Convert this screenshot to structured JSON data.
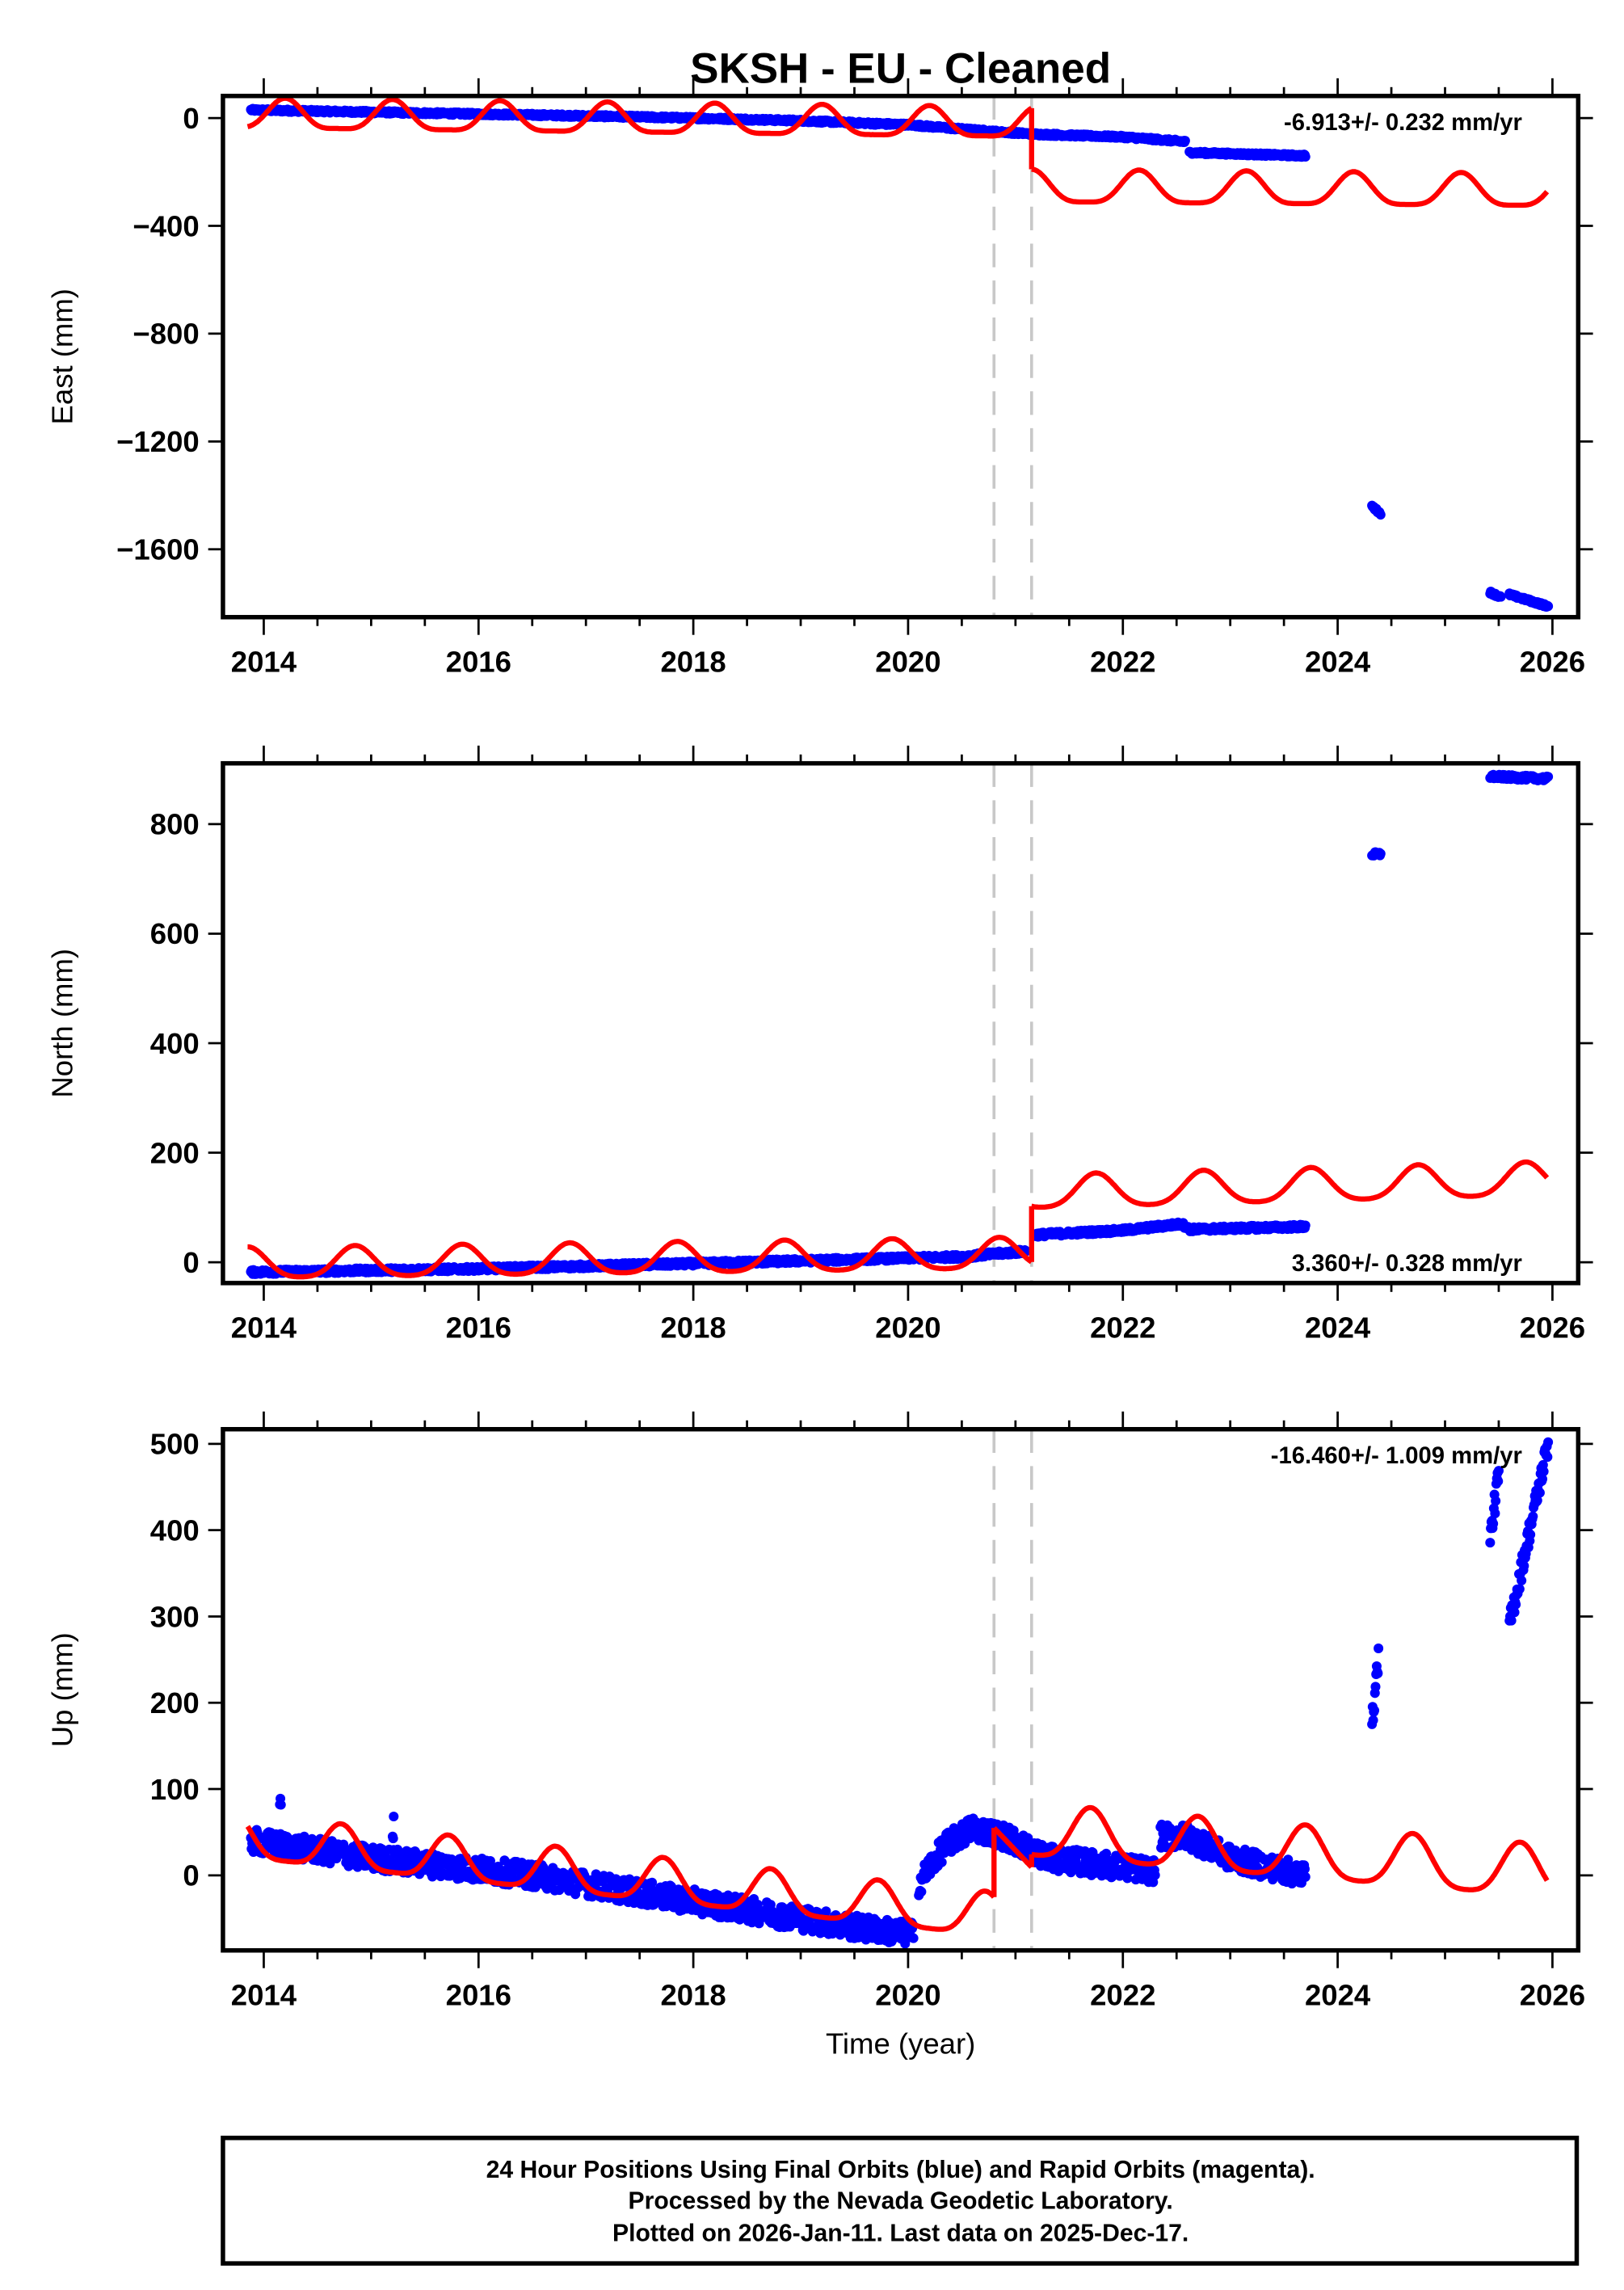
{
  "chart_data": {
    "type": "scatter",
    "title": "SKSH  - EU - Cleaned",
    "xlabel": "Time (year)",
    "xlim": [
      2013.62,
      2026.24
    ],
    "xticks": [
      2014,
      2016,
      2018,
      2020,
      2022,
      2024,
      2026
    ],
    "equipment_change_lines": [
      2020.8,
      2021.15
    ],
    "colors": {
      "observed": "#0000ff",
      "model": "#ff0000",
      "dashed": "#c8c8c8"
    },
    "panels": [
      {
        "ylabel": "East (mm)",
        "ylim": [
          -1852,
          82
        ],
        "yticks": [
          0,
          -400,
          -800,
          -1200,
          -1600
        ],
        "rate_label": "-6.913+/- 0.232 mm/yr",
        "rate_position": "top-right",
        "noise": 5,
        "observed_segments": [
          [
            [
              2013.88,
              30
            ],
            [
              2015,
              22
            ],
            [
              2016,
              15
            ],
            [
              2017,
              8
            ],
            [
              2018,
              0
            ],
            [
              2019,
              -10
            ],
            [
              2020,
              -25
            ],
            [
              2020.8,
              -50
            ],
            [
              2021.2,
              -60
            ],
            [
              2022,
              -70
            ],
            [
              2022.5,
              -85
            ],
            [
              2022.58,
              -88
            ]
          ],
          [
            [
              2022.62,
              -128
            ],
            [
              2023.7,
              -140
            ]
          ],
          [
            [
              2024.32,
              -1440
            ],
            [
              2024.4,
              -1468
            ]
          ],
          [
            [
              2025.42,
              -1760
            ],
            [
              2025.52,
              -1778
            ]
          ],
          [
            [
              2025.6,
              -1768
            ],
            [
              2025.96,
              -1812
            ]
          ]
        ],
        "model_segments": [
          {
            "t": [
              2013.85,
              2021.15
            ],
            "start": 5,
            "rate": -4.5,
            "annual_amp": 55,
            "semiannual_amp": 15,
            "peak_phase": 0.2
          },
          {
            "t": [
              2021.15,
              2025.95
            ],
            "start": -265,
            "rate": -3,
            "annual_amp": 60,
            "semiannual_amp": 15,
            "peak_phase": 0.15
          }
        ]
      },
      {
        "ylabel": "North (mm)",
        "ylim": [
          -38,
          911
        ],
        "yticks": [
          0,
          200,
          400,
          600,
          800
        ],
        "rate_label": "3.360+/- 0.328 mm/yr",
        "rate_position": "bottom-right",
        "noise": 4,
        "observed_segments": [
          [
            [
              2013.88,
              -18
            ],
            [
              2016,
              -12
            ],
            [
              2018.5,
              0
            ],
            [
              2020.5,
              10
            ],
            [
              2021.1,
              20
            ]
          ],
          [
            [
              2021.18,
              50
            ],
            [
              2022,
              58
            ],
            [
              2022.55,
              70
            ],
            [
              2022.62,
              60
            ],
            [
              2023.7,
              65
            ]
          ],
          [
            [
              2024.32,
              745
            ],
            [
              2024.4,
              745
            ]
          ],
          [
            [
              2025.42,
              887
            ],
            [
              2025.96,
              883
            ]
          ]
        ],
        "model_segments": [
          {
            "t": [
              2013.85,
              2021.15
            ],
            "start": -5,
            "rate": 2.5,
            "annual_amp": 28,
            "semiannual_amp": 5,
            "peak_phase": 0.85
          },
          {
            "t": [
              2021.15,
              2025.95
            ],
            "start": 125,
            "rate": 5,
            "annual_amp": 30,
            "semiannual_amp": 5,
            "peak_phase": 0.75
          }
        ]
      },
      {
        "ylabel": "Up (mm)",
        "ylim": [
          -87,
          517
        ],
        "yticks": [
          0,
          100,
          200,
          300,
          400,
          500
        ],
        "rate_label": "-16.460+/- 1.009 mm/yr",
        "rate_position": "top-right",
        "noise": 14,
        "observed_segments": [
          [
            [
              2013.88,
              40
            ],
            [
              2015,
              20
            ],
            [
              2016.5,
              0
            ],
            [
              2018,
              -30
            ],
            [
              2019.5,
              -60
            ],
            [
              2020.05,
              -68
            ]
          ],
          [
            [
              2020.1,
              -10
            ],
            [
              2020.2,
              10
            ],
            [
              2020.35,
              35
            ],
            [
              2020.6,
              55
            ],
            [
              2020.9,
              45
            ],
            [
              2021.3,
              20
            ],
            [
              2022.3,
              5
            ]
          ],
          [
            [
              2022.35,
              45
            ],
            [
              2022.6,
              45
            ],
            [
              2023,
              20
            ],
            [
              2023.7,
              0
            ]
          ],
          [
            [
              2014.15,
              95
            ],
            [
              2014.16,
              95
            ]
          ],
          [
            [
              2015.2,
              55
            ],
            [
              2015.21,
              55
            ]
          ],
          [
            [
              2024.32,
              175
            ],
            [
              2024.38,
              255
            ]
          ],
          [
            [
              2025.42,
              390
            ],
            [
              2025.5,
              465
            ]
          ],
          [
            [
              2025.6,
              290
            ],
            [
              2025.96,
              500
            ]
          ]
        ],
        "model_segments": [
          {
            "t": [
              2013.85,
              2020.8
            ],
            "start": 40,
            "rate": -13,
            "annual_amp": 25,
            "semiannual_amp": 6,
            "peak_phase": 0.72
          },
          {
            "t": [
              2020.8,
              2021.15
            ],
            "start": 55,
            "rate": -130,
            "annual_amp": 0,
            "semiannual_amp": 0,
            "peak_phase": 0
          },
          {
            "t": [
              2021.15,
              2025.95
            ],
            "start": 48,
            "rate": -10,
            "annual_amp": 30,
            "semiannual_amp": 6,
            "peak_phase": 0.7
          }
        ]
      }
    ]
  },
  "footer": {
    "line1": "24 Hour Positions Using Final Orbits (blue) and Rapid Orbits (magenta).",
    "line2": "Processed by the Nevada Geodetic Laboratory.",
    "line3": "Plotted on 2026-Jan-11. Last data on 2025-Dec-17."
  }
}
